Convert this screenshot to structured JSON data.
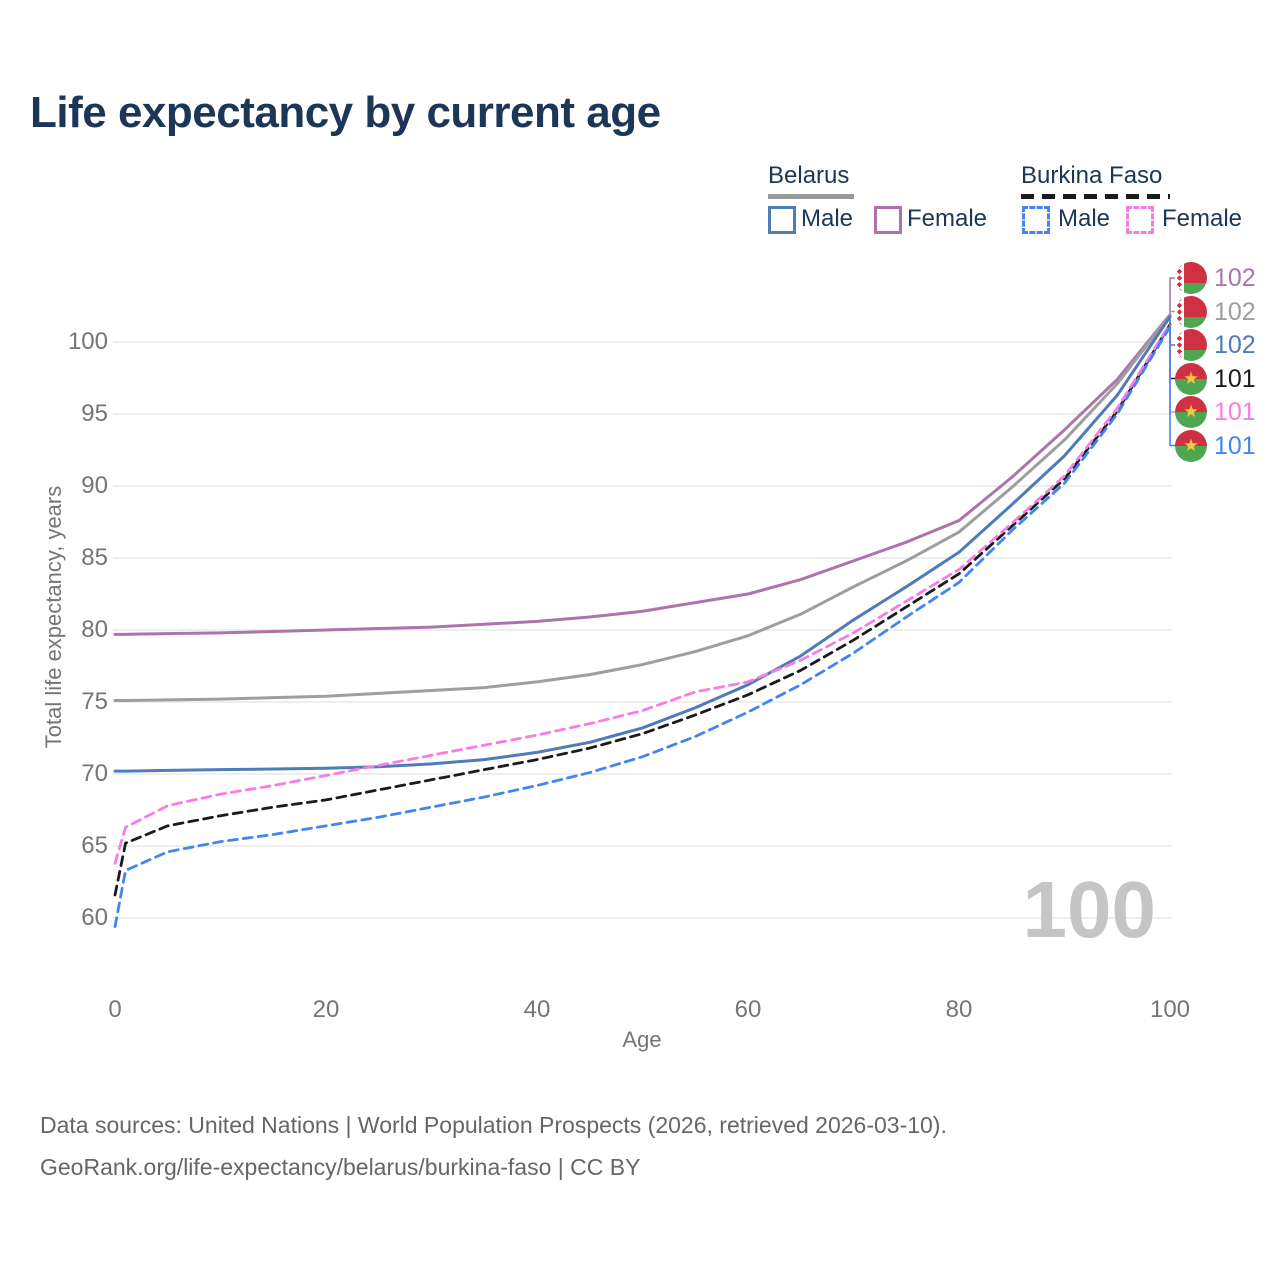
{
  "title": "Life expectancy by current age",
  "legend": {
    "belarus": {
      "label": "Belarus",
      "male": "Male",
      "female": "Female",
      "underline_color": "#9a9a9a",
      "line_style": "solid"
    },
    "burkina": {
      "label": "Burkina Faso",
      "male": "Male",
      "female": "Female",
      "underline_color": "#1a1a1a",
      "line_style": "dashed"
    }
  },
  "watermark": "100",
  "footer": {
    "line1": "Data sources: United Nations | World Population Prospects (2026, retrieved 2026-03-10).",
    "line2": "GeoRank.org/life-expectancy/belarus/burkina-faso | CC BY"
  },
  "chart_data": {
    "type": "line",
    "title": "Life expectancy by current age",
    "xlabel": "Age",
    "ylabel": "Total life expectancy, years",
    "xlim": [
      0,
      100
    ],
    "ylim": [
      58,
      104
    ],
    "grid": "horizontal-only",
    "legend_position": "top-right",
    "xticks": [
      0,
      20,
      40,
      60,
      80,
      100
    ],
    "yticks": [
      60,
      65,
      70,
      75,
      80,
      85,
      90,
      95,
      100
    ],
    "x": [
      0,
      1,
      5,
      10,
      15,
      20,
      25,
      30,
      35,
      40,
      45,
      50,
      55,
      60,
      65,
      70,
      75,
      80,
      85,
      90,
      95,
      100
    ],
    "series": [
      {
        "id": "belarus_female",
        "name": "Belarus Female",
        "flag": "belarus",
        "color": "#ad74ac",
        "dash": "solid",
        "end_label": "102",
        "values": [
          79.7,
          79.7,
          79.75,
          79.8,
          79.9,
          80.0,
          80.1,
          80.2,
          80.4,
          80.6,
          80.9,
          81.3,
          81.9,
          82.5,
          83.5,
          84.8,
          86.1,
          87.6,
          90.6,
          93.9,
          97.4,
          101.9
        ]
      },
      {
        "id": "belarus_total",
        "name": "Belarus Total",
        "flag": "belarus",
        "color": "#9e9e9e",
        "dash": "solid",
        "end_label": "102",
        "values": [
          75.1,
          75.1,
          75.15,
          75.2,
          75.3,
          75.4,
          75.6,
          75.8,
          76.0,
          76.4,
          76.9,
          77.6,
          78.5,
          79.6,
          81.1,
          83.0,
          84.8,
          86.8,
          89.9,
          93.2,
          97.1,
          101.85
        ]
      },
      {
        "id": "belarus_male",
        "name": "Belarus Male",
        "flag": "belarus",
        "color": "#4d7cb8",
        "dash": "solid",
        "end_label": "102",
        "values": [
          70.2,
          70.2,
          70.25,
          70.3,
          70.35,
          70.4,
          70.5,
          70.7,
          71.0,
          71.5,
          72.2,
          73.2,
          74.6,
          76.2,
          78.2,
          80.7,
          83.0,
          85.4,
          88.7,
          92.1,
          96.3,
          101.75
        ]
      },
      {
        "id": "burkina_total",
        "name": "Burkina Faso Total",
        "flag": "burkina-faso",
        "color": "#1b1b1b",
        "dash": "dashed",
        "end_label": "101",
        "values": [
          61.6,
          65.2,
          66.4,
          67.1,
          67.7,
          68.2,
          68.9,
          69.6,
          70.3,
          71.0,
          71.8,
          72.8,
          74.1,
          75.5,
          77.2,
          79.3,
          81.6,
          83.9,
          87.2,
          90.5,
          95.2,
          101.2
        ]
      },
      {
        "id": "burkina_female",
        "name": "Burkina Faso Female",
        "flag": "burkina-faso",
        "color": "#f97ce5",
        "dash": "dashed",
        "end_label": "101",
        "values": [
          63.8,
          66.3,
          67.8,
          68.6,
          69.2,
          69.9,
          70.6,
          71.3,
          72.0,
          72.7,
          73.5,
          74.4,
          75.7,
          76.4,
          77.9,
          79.8,
          82.0,
          84.2,
          87.4,
          90.7,
          95.4,
          101.25
        ]
      },
      {
        "id": "burkina_male",
        "name": "Burkina Faso Male",
        "flag": "burkina-faso",
        "color": "#4186f0",
        "dash": "dashed",
        "end_label": "101",
        "values": [
          59.4,
          63.3,
          64.6,
          65.3,
          65.8,
          66.4,
          67.0,
          67.7,
          68.4,
          69.2,
          70.1,
          71.2,
          72.6,
          74.3,
          76.2,
          78.4,
          80.9,
          83.3,
          86.9,
          90.2,
          95.0,
          101.05
        ]
      }
    ]
  }
}
